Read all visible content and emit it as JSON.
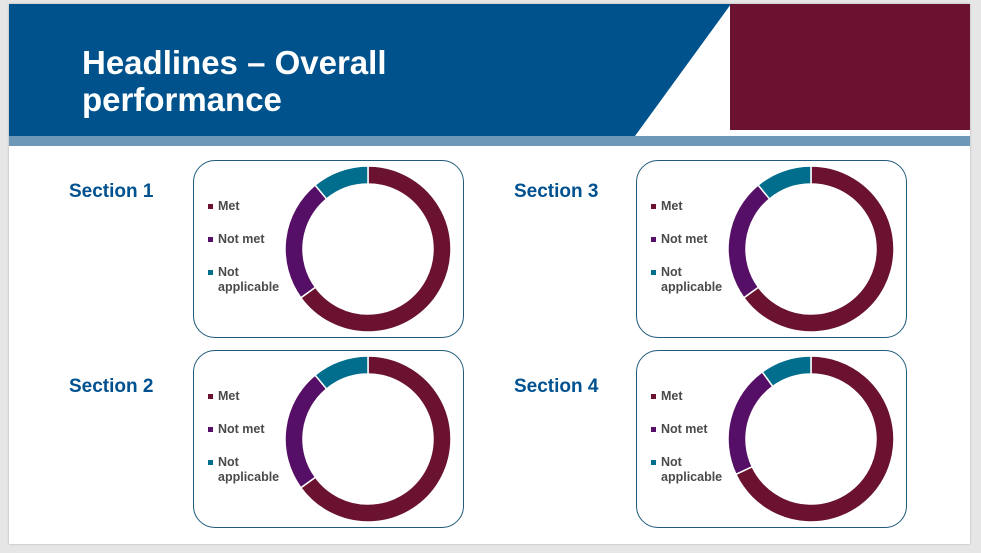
{
  "title": "Headlines – Overall performance",
  "title_lines": [
    "Headlines – Overall",
    "performance"
  ],
  "colors": {
    "header_blue": "#00528c",
    "accent_maroon": "#6a1230",
    "stripe": "#6e98b8",
    "met": "#6a1230",
    "not_met": "#560f66",
    "not_applicable": "#006e8c",
    "section_text": "#005190"
  },
  "legend": [
    "Met",
    "Not met",
    "Not applicable"
  ],
  "chart_data": [
    {
      "type": "pie",
      "section": "Section 1",
      "categories": [
        "Met",
        "Not met",
        "Not applicable"
      ],
      "values": [
        65,
        24,
        11
      ],
      "donut": true
    },
    {
      "type": "pie",
      "section": "Section 2",
      "categories": [
        "Met",
        "Not met",
        "Not applicable"
      ],
      "values": [
        65,
        24,
        11
      ],
      "donut": true
    },
    {
      "type": "pie",
      "section": "Section 3",
      "categories": [
        "Met",
        "Not met",
        "Not applicable"
      ],
      "values": [
        65,
        24,
        11
      ],
      "donut": true
    },
    {
      "type": "pie",
      "section": "Section 4",
      "categories": [
        "Met",
        "Not met",
        "Not applicable"
      ],
      "values": [
        68,
        22,
        10
      ],
      "donut": true
    }
  ]
}
